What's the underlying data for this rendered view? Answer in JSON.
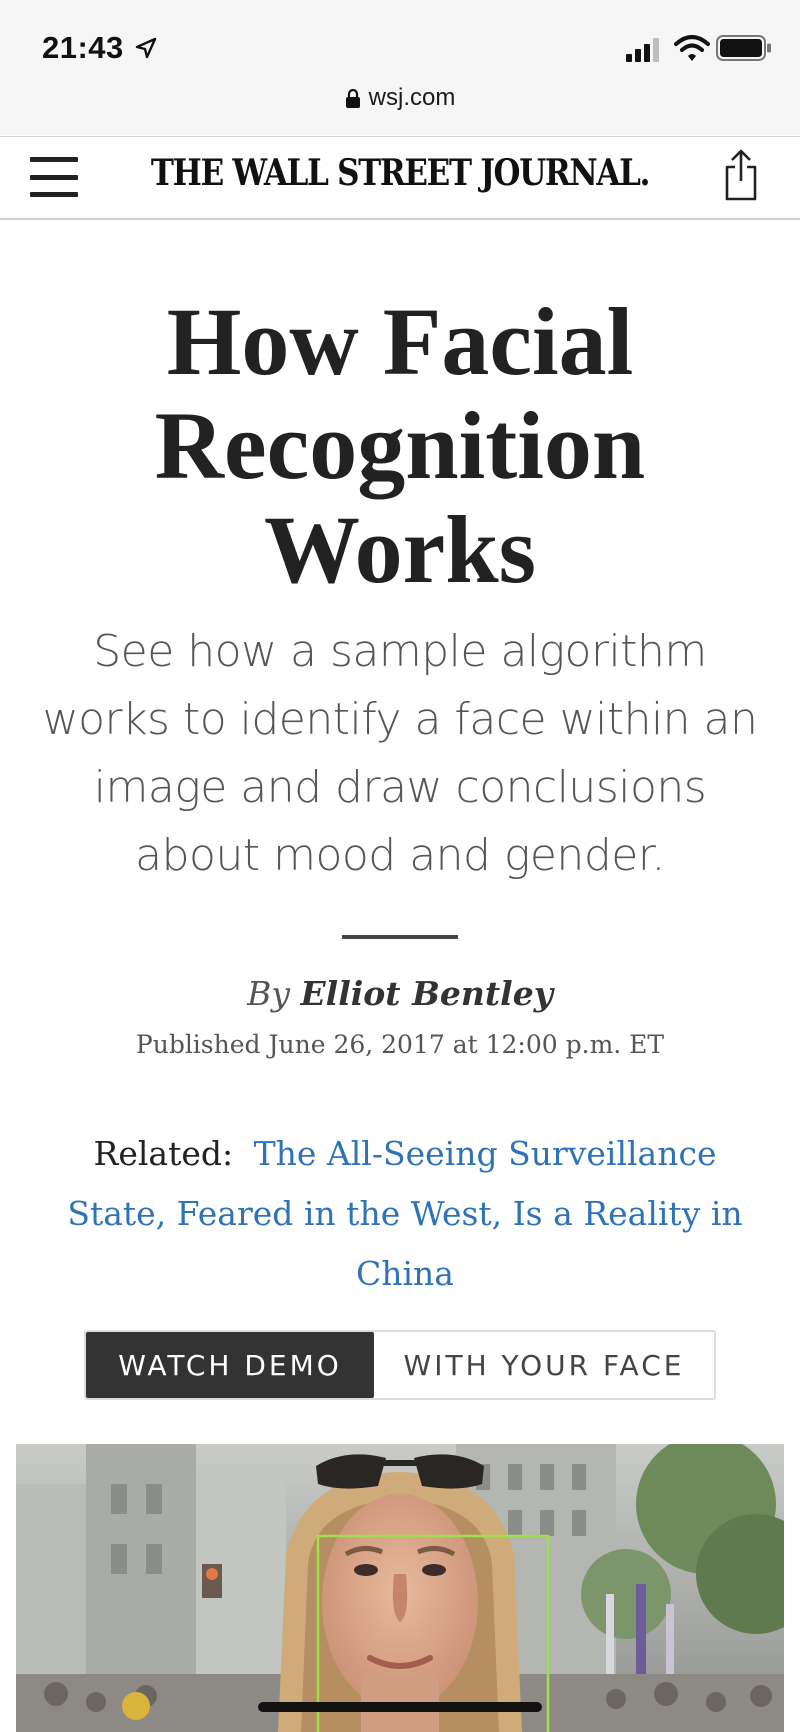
{
  "status_bar": {
    "time": "21:43",
    "url": "wsj.com"
  },
  "header": {
    "masthead": "THE WALL STREET JOURNAL."
  },
  "article": {
    "headline_lines": [
      "How Facial",
      "Recognition",
      "Works"
    ],
    "dek": "See how a sample algorithm works to identify a face within an image and draw conclusions about mood and gender.",
    "byline_prefix": "By",
    "author": "Elliot Bentley",
    "published": "Published June 26, 2017 at 12:00 p.m. ET",
    "related_label": "Related:",
    "related_link": "The All-Seeing Surveillance State, Feared in the West, Is a Reality in China"
  },
  "toggle": {
    "options": [
      {
        "label": "WATCH DEMO",
        "selected": true
      },
      {
        "label": "WITH YOUR FACE",
        "selected": false
      }
    ]
  },
  "colors": {
    "link": "#2e73b8",
    "face_box": "#9ee04a",
    "toggle_active_bg": "#333333"
  }
}
